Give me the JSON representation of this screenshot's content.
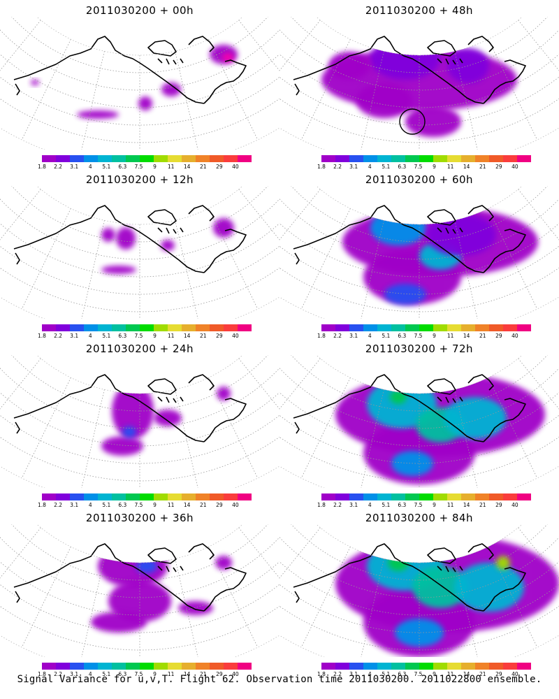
{
  "colorbar": {
    "colors": [
      "#a000c8",
      "#8000dc",
      "#2850f0",
      "#0090e8",
      "#00b4d2",
      "#00c0a0",
      "#00c850",
      "#00dc00",
      "#a0dc00",
      "#e6dc32",
      "#e6af2d",
      "#f08228",
      "#f05a28",
      "#fa3c3c",
      "#f00082"
    ],
    "labels": [
      "1.8",
      "2.2",
      "3.1",
      "4",
      "5.1",
      "6.3",
      "7.5",
      "9",
      "11",
      "14",
      "21",
      "29",
      "40"
    ]
  },
  "panels": [
    {
      "id": "p00",
      "title": "2011030200 + 00h",
      "blobs": [
        [
          420,
          54,
          20,
          14,
          "#a000c8"
        ],
        [
          426,
          58,
          8,
          6,
          "#ff00aa"
        ],
        [
          345,
          104,
          14,
          10,
          "#a000c8"
        ],
        [
          308,
          124,
          10,
          10,
          "#a000c8"
        ],
        [
          240,
          140,
          30,
          6,
          "#a000c8"
        ],
        [
          150,
          94,
          6,
          4,
          "#a000c8"
        ]
      ]
    },
    {
      "id": "p48",
      "title": "2011030200 + 48h",
      "blobs": [
        [
          300,
          90,
          140,
          45,
          "#a000c8"
        ],
        [
          250,
          120,
          40,
          25,
          "#a000c8"
        ],
        [
          320,
          150,
          40,
          22,
          "#a000c8"
        ],
        [
          370,
          70,
          30,
          25,
          "#8000dc"
        ],
        [
          280,
          60,
          50,
          30,
          "#8000dc"
        ],
        [
          200,
          70,
          30,
          20,
          "#a000c8"
        ]
      ]
    },
    {
      "id": "p12",
      "title": "2011030200 + 12h",
      "blobs": [
        [
          420,
          60,
          15,
          14,
          "#a000c8"
        ],
        [
          280,
          75,
          14,
          16,
          "#a000c8"
        ],
        [
          255,
          70,
          10,
          10,
          "#a000c8"
        ],
        [
          340,
          85,
          10,
          8,
          "#a000c8"
        ],
        [
          270,
          120,
          25,
          6,
          "#a000c8"
        ]
      ]
    },
    {
      "id": "p60",
      "title": "2011030200 + 60h",
      "blobs": [
        [
          330,
          80,
          140,
          50,
          "#a000c8"
        ],
        [
          290,
          130,
          70,
          40,
          "#a000c8"
        ],
        [
          270,
          60,
          40,
          25,
          "#0090e8"
        ],
        [
          330,
          100,
          30,
          20,
          "#00b4d2"
        ],
        [
          360,
          70,
          50,
          30,
          "#8000dc"
        ],
        [
          280,
          155,
          30,
          15,
          "#2850f0"
        ]
      ]
    },
    {
      "id": "p24",
      "title": "2011030200 + 24h",
      "blobs": [
        [
          290,
          80,
          30,
          40,
          "#a000c8"
        ],
        [
          275,
          130,
          30,
          14,
          "#a000c8"
        ],
        [
          340,
          90,
          20,
          12,
          "#a000c8"
        ],
        [
          420,
          55,
          10,
          10,
          "#a000c8"
        ],
        [
          285,
          110,
          10,
          8,
          "#2850f0"
        ]
      ]
    },
    {
      "id": "p72",
      "title": "2011030200 + 72h",
      "blobs": [
        [
          330,
          85,
          150,
          60,
          "#a000c8"
        ],
        [
          300,
          140,
          80,
          45,
          "#a000c8"
        ],
        [
          275,
          70,
          50,
          35,
          "#00b4d2"
        ],
        [
          330,
          100,
          35,
          25,
          "#00c0a0"
        ],
        [
          380,
          90,
          45,
          30,
          "#00b4d2"
        ],
        [
          270,
          60,
          12,
          10,
          "#00c850"
        ],
        [
          290,
          155,
          30,
          18,
          "#0090e8"
        ]
      ]
    },
    {
      "id": "p36",
      "title": "2011030200 + 36h",
      "blobs": [
        [
          290,
          60,
          50,
          30,
          "#a000c8"
        ],
        [
          300,
          110,
          45,
          30,
          "#a000c8"
        ],
        [
          270,
          140,
          40,
          15,
          "#a000c8"
        ],
        [
          380,
          120,
          25,
          10,
          "#a000c8"
        ],
        [
          420,
          55,
          12,
          10,
          "#a000c8"
        ],
        [
          310,
          60,
          15,
          10,
          "#2850f0"
        ]
      ]
    },
    {
      "id": "p84",
      "title": "2011030200 + 84h",
      "blobs": [
        [
          340,
          85,
          160,
          70,
          "#a000c8"
        ],
        [
          300,
          140,
          80,
          50,
          "#a000c8"
        ],
        [
          280,
          60,
          55,
          35,
          "#00b4d2"
        ],
        [
          330,
          90,
          40,
          30,
          "#00c0a0"
        ],
        [
          400,
          90,
          50,
          35,
          "#00b4d2"
        ],
        [
          270,
          55,
          15,
          12,
          "#00c850"
        ],
        [
          420,
          55,
          10,
          10,
          "#a0dc00"
        ],
        [
          300,
          155,
          35,
          20,
          "#0090e8"
        ]
      ]
    }
  ],
  "footer": "Signal Variance for u,v,T. Flight 62. Observation time 2011030200. 2011022800 ensemble."
}
